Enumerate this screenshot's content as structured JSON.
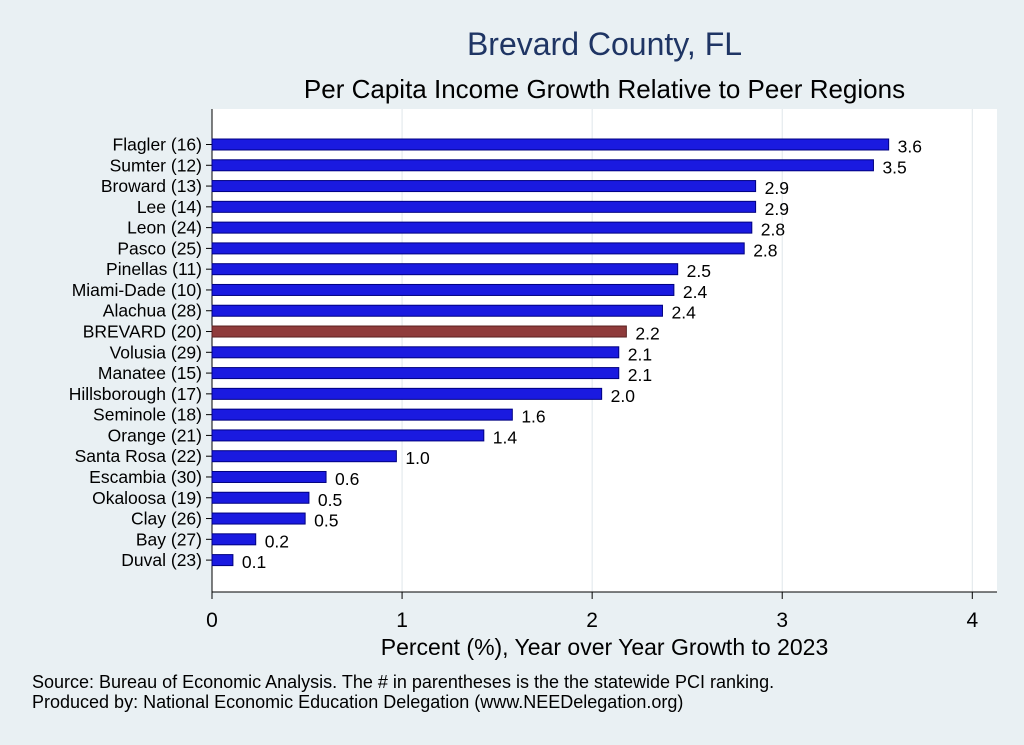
{
  "colors": {
    "background": "#e9f0f3",
    "plot_background": "#ffffff",
    "bar": "#1a1ae0",
    "bar_outline": "#000080",
    "highlight_bar": "#8f3b3b",
    "title": "#1f3564"
  },
  "chart_data": {
    "type": "bar",
    "orientation": "horizontal",
    "title": "Brevard County, FL",
    "subtitle": "Per Capita Income Growth Relative to Peer Regions",
    "xlabel": "Percent (%), Year over Year Growth to 2023",
    "xlim": [
      0,
      4.13
    ],
    "xticks": [
      0,
      1,
      2,
      3,
      4
    ],
    "grid": "vertical",
    "highlight": "BREVARD (20)",
    "categories": [
      "Flagler (16)",
      "Sumter (12)",
      "Broward (13)",
      "Lee (14)",
      "Leon (24)",
      "Pasco (25)",
      "Pinellas (11)",
      "Miami-Dade (10)",
      "Alachua (28)",
      "BREVARD (20)",
      "Volusia (29)",
      "Manatee (15)",
      "Hillsborough (17)",
      "Seminole (18)",
      "Orange (21)",
      "Santa Rosa (22)",
      "Escambia (30)",
      "Okaloosa (19)",
      "Clay (26)",
      "Bay (27)",
      "Duval (23)"
    ],
    "values": [
      3.56,
      3.48,
      2.86,
      2.86,
      2.84,
      2.8,
      2.45,
      2.43,
      2.37,
      2.18,
      2.14,
      2.14,
      2.05,
      1.58,
      1.43,
      0.97,
      0.6,
      0.51,
      0.49,
      0.23,
      0.11
    ],
    "value_labels": [
      "3.6",
      "3.5",
      "2.9",
      "2.9",
      "2.8",
      "2.8",
      "2.5",
      "2.4",
      "2.4",
      "2.2",
      "2.1",
      "2.1",
      "2.0",
      "1.6",
      "1.4",
      "1.0",
      "0.6",
      "0.5",
      "0.5",
      "0.2",
      "0.1"
    ]
  },
  "notes": {
    "source": "Source: Bureau of Economic Analysis. The # in parentheses is the the statewide PCI ranking.",
    "produced_by": "Produced by: National Economic Education Delegation (www.NEEDelegation.org)"
  }
}
